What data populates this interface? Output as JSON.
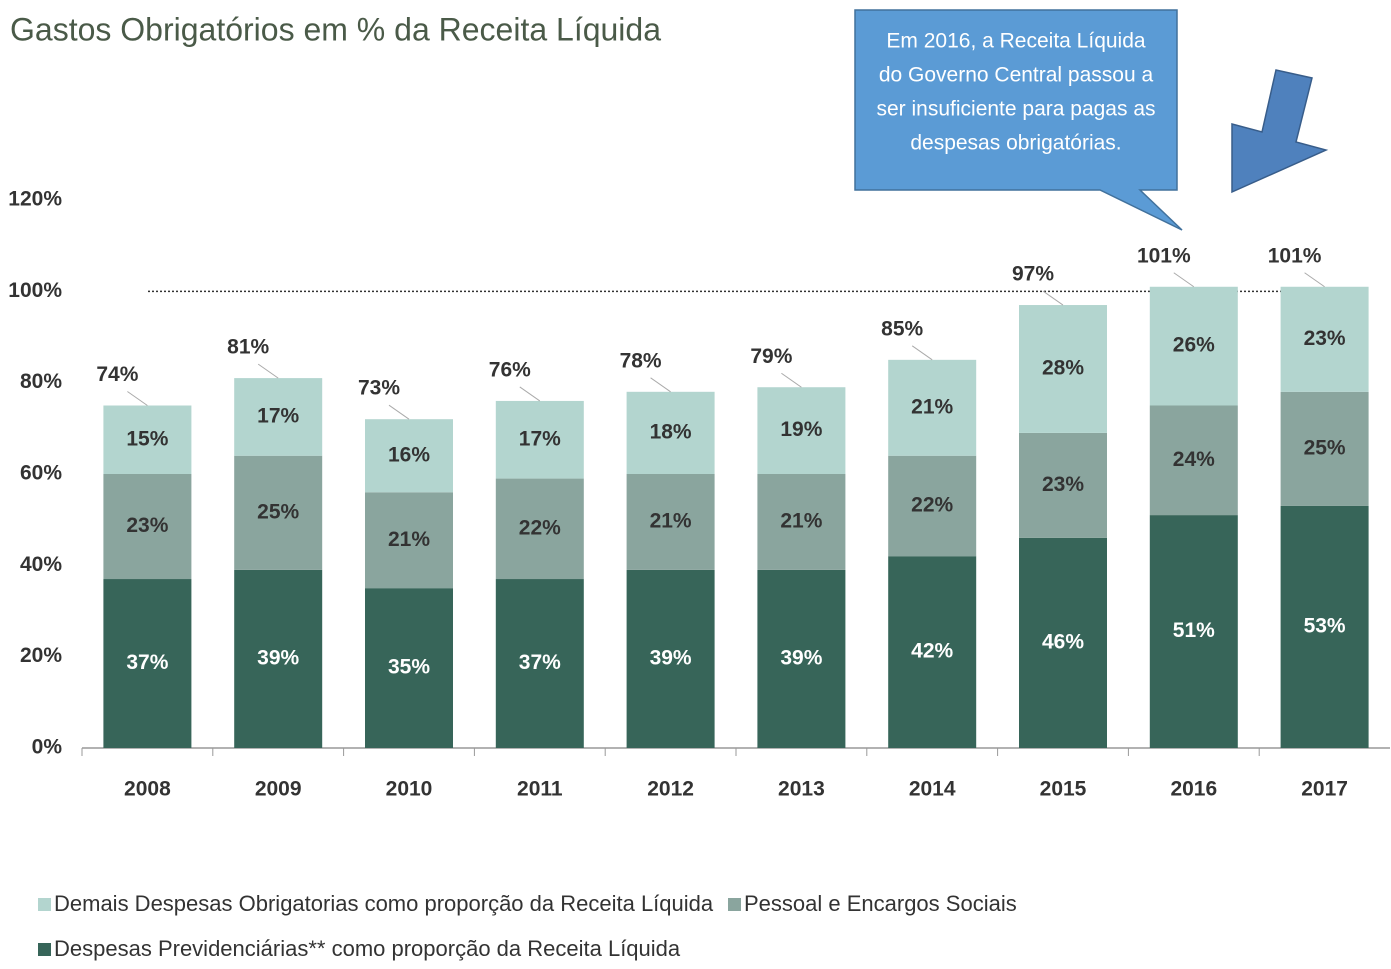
{
  "chart_data": {
    "type": "stacked-bar",
    "title": "Gastos Obrigatórios em % da Receita Líquida",
    "annotation": [
      "Em 2016, a Receita Líquida",
      "do Governo Central passou a",
      "ser insuficiente para pagas as",
      "despesas obrigatórias."
    ],
    "categories": [
      "2008",
      "2009",
      "2010",
      "2011",
      "2012",
      "2013",
      "2014",
      "2015",
      "2016",
      "2017"
    ],
    "series": [
      {
        "name": "Despesas Previdenciárias** como proporção da Receita Líquida",
        "color": "#376559",
        "values": [
          37,
          39,
          35,
          37,
          39,
          39,
          42,
          46,
          51,
          53
        ],
        "value_labels": [
          "37%",
          "39%",
          "35%",
          "37%",
          "39%",
          "39%",
          "42%",
          "46%",
          "51%",
          "53%"
        ]
      },
      {
        "name": "Pessoal e Encargos Sociais",
        "color": "#8aa59e",
        "values": [
          23,
          25,
          21,
          22,
          21,
          21,
          22,
          23,
          24,
          25
        ],
        "value_labels": [
          "23%",
          "25%",
          "21%",
          "22%",
          "21%",
          "21%",
          "22%",
          "23%",
          "24%",
          "25%"
        ]
      },
      {
        "name": "Demais Despesas Obrigatorias como proporção da Receita Líquida",
        "color": "#b3d5cf",
        "values": [
          15,
          17,
          16,
          17,
          18,
          19,
          21,
          28,
          26,
          23
        ],
        "value_labels": [
          "15%",
          "17%",
          "16%",
          "17%",
          "18%",
          "19%",
          "21%",
          "28%",
          "26%",
          "23%"
        ]
      }
    ],
    "totals": [
      74,
      81,
      73,
      76,
      78,
      79,
      85,
      97,
      101,
      101
    ],
    "total_labels": [
      "74%",
      "81%",
      "73%",
      "76%",
      "78%",
      "79%",
      "85%",
      "97%",
      "101%",
      "101%"
    ],
    "reference_line": 100,
    "ylim": [
      0,
      120
    ],
    "yticks": [
      {
        "value": 0,
        "label": "0%"
      },
      {
        "value": 20,
        "label": "20%"
      },
      {
        "value": 40,
        "label": "40%"
      },
      {
        "value": 60,
        "label": "60%"
      },
      {
        "value": 80,
        "label": "80%"
      },
      {
        "value": 100,
        "label": "100%"
      },
      {
        "value": 120,
        "label": "120%"
      }
    ]
  }
}
